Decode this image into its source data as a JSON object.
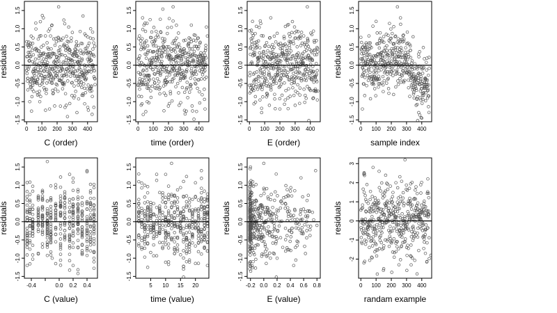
{
  "chart_data": [
    {
      "type": "scatter",
      "xlabel": "C (order)",
      "ylabel": "residuals",
      "xlim": [
        -15,
        465
      ],
      "ylim": [
        -1.55,
        1.75
      ],
      "xticks": [
        0,
        100,
        200,
        300,
        400
      ],
      "xtick_labels": [
        "0",
        "100",
        "200",
        "300",
        "400"
      ],
      "yticks": [
        -1.5,
        -1.0,
        -0.5,
        0.0,
        0.5,
        1.0,
        1.5
      ],
      "ytick_labels": [
        "-1.5",
        "-1.0",
        "-0.5",
        "0.0",
        "0.5",
        "1.0",
        "1.5"
      ],
      "hline": 0,
      "n_points": 450,
      "pattern": "order",
      "seed": 11,
      "marker_color": "#555555",
      "points": [
        [
          5,
          0.55
        ],
        [
          20,
          -1.0
        ],
        [
          40,
          0.6
        ],
        [
          80,
          -0.8
        ],
        [
          110,
          1.3
        ],
        [
          150,
          -1.2
        ],
        [
          210,
          1.6
        ],
        [
          260,
          -1.1
        ],
        [
          300,
          0.9
        ],
        [
          330,
          -1.3
        ],
        [
          370,
          1.35
        ],
        [
          420,
          1.0
        ]
      ]
    },
    {
      "type": "scatter",
      "xlabel": "time (order)",
      "ylabel": "residuals",
      "xlim": [
        -15,
        465
      ],
      "ylim": [
        -1.55,
        1.75
      ],
      "xticks": [
        0,
        100,
        200,
        300,
        400
      ],
      "xtick_labels": [
        "0",
        "100",
        "200",
        "300",
        "400"
      ],
      "yticks": [
        -1.5,
        -1.0,
        -0.5,
        0.0,
        0.5,
        1.0,
        1.5
      ],
      "ytick_labels": [
        "-1.5",
        "-1.0",
        "-0.5",
        "0.0",
        "0.5",
        "1.0",
        "1.5"
      ],
      "hline": 0,
      "n_points": 450,
      "pattern": "order",
      "seed": 23,
      "marker_color": "#555555",
      "points": [
        [
          30,
          1.3
        ],
        [
          60,
          -1.0
        ],
        [
          150,
          0.9
        ],
        [
          170,
          -1.25
        ],
        [
          230,
          1.6
        ],
        [
          270,
          -1.1
        ],
        [
          350,
          1.1
        ],
        [
          440,
          -1.2
        ],
        [
          455,
          0.8
        ]
      ]
    },
    {
      "type": "scatter",
      "xlabel": "E (order)",
      "ylabel": "residuals",
      "xlim": [
        -15,
        465
      ],
      "ylim": [
        -1.55,
        1.75
      ],
      "xticks": [
        0,
        100,
        200,
        300,
        400
      ],
      "xtick_labels": [
        "0",
        "100",
        "200",
        "300",
        "400"
      ],
      "yticks": [
        -1.5,
        -1.0,
        -0.5,
        0.0,
        0.5,
        1.0,
        1.5
      ],
      "ytick_labels": [
        "-1.5",
        "-1.0",
        "-0.5",
        "0.0",
        "0.5",
        "1.0",
        "1.5"
      ],
      "hline": 0,
      "n_points": 450,
      "pattern": "order",
      "seed": 37,
      "marker_color": "#555555",
      "points": [
        [
          20,
          1.2
        ],
        [
          80,
          -1.3
        ],
        [
          140,
          1.3
        ],
        [
          200,
          -1.2
        ],
        [
          250,
          1.1
        ],
        [
          300,
          -1.1
        ],
        [
          380,
          1.6
        ],
        [
          420,
          -0.9
        ]
      ]
    },
    {
      "type": "scatter",
      "xlabel": "sample index",
      "ylabel": "residuals",
      "xlim": [
        -15,
        465
      ],
      "ylim": [
        -1.55,
        1.75
      ],
      "xticks": [
        0,
        100,
        200,
        300,
        400
      ],
      "xtick_labels": [
        "0",
        "100",
        "200",
        "300",
        "400"
      ],
      "yticks": [
        -1.5,
        -1.0,
        -0.5,
        0.0,
        0.5,
        1.0,
        1.5
      ],
      "ytick_labels": [
        "-1.5",
        "-1.0",
        "-0.5",
        "0.0",
        "0.5",
        "1.0",
        "1.5"
      ],
      "hline": 0,
      "n_points": 450,
      "pattern": "sorted",
      "seed": 41,
      "marker_color": "#555555",
      "points": [
        [
          10,
          -1.2
        ],
        [
          100,
          1.2
        ],
        [
          240,
          1.6
        ],
        [
          260,
          1.3
        ],
        [
          350,
          -0.9
        ],
        [
          380,
          -1.3
        ],
        [
          400,
          -1.45
        ],
        [
          420,
          -0.6
        ]
      ]
    },
    {
      "type": "scatter",
      "xlabel": "C (value)",
      "ylabel": "residuals",
      "xlim": [
        -0.5,
        0.55
      ],
      "ylim": [
        -1.55,
        1.75
      ],
      "xticks": [
        -0.4,
        -0.2,
        0.0,
        0.2,
        0.4
      ],
      "xtick_labels": [
        "-0.4",
        "",
        "0.0",
        "0.2",
        "0.4"
      ],
      "yticks": [
        -1.5,
        -1.0,
        -0.5,
        0.0,
        0.5,
        1.0,
        1.5
      ],
      "ytick_labels": [
        "-1.5",
        "-1.0",
        "-0.5",
        "0.0",
        "0.5",
        "1.0",
        "1.5"
      ],
      "hline": 0,
      "n_points": 450,
      "pattern": "columns",
      "columns": [
        -0.46,
        -0.42,
        -0.38,
        -0.3,
        -0.24,
        -0.17,
        -0.12,
        -0.05,
        0.02,
        0.08,
        0.15,
        0.2,
        0.27,
        0.33,
        0.4,
        0.45,
        0.5
      ],
      "seed": 53,
      "marker_color": "#555555",
      "points": [
        [
          -0.46,
          -1.2
        ],
        [
          -0.17,
          1.65
        ],
        [
          -0.1,
          -1.0
        ],
        [
          0.15,
          1.3
        ],
        [
          0.2,
          -1.2
        ],
        [
          0.4,
          1.4
        ],
        [
          0.5,
          -1.0
        ]
      ]
    },
    {
      "type": "scatter",
      "xlabel": "time (value)",
      "ylabel": "residuals",
      "xlim": [
        0,
        24.5
      ],
      "ylim": [
        -1.55,
        1.75
      ],
      "xticks": [
        5,
        10,
        15,
        20
      ],
      "xtick_labels": [
        "5",
        "10",
        "15",
        "20"
      ],
      "yticks": [
        -1.5,
        -1.0,
        -0.5,
        0.0,
        0.5,
        1.0,
        1.5
      ],
      "ytick_labels": [
        "-1.5",
        "-1.0",
        "-0.5",
        "0.0",
        "0.5",
        "1.0",
        "1.5"
      ],
      "hline": 0,
      "n_points": 450,
      "pattern": "columns",
      "columns": [
        1,
        2,
        3,
        4,
        5,
        6,
        7,
        8,
        9,
        10,
        11,
        12,
        13,
        14,
        15,
        16,
        17,
        18,
        19,
        20,
        21,
        22,
        23,
        24
      ],
      "seed": 61,
      "marker_color": "#555555",
      "points": [
        [
          1,
          1.1
        ],
        [
          4,
          -1.25
        ],
        [
          7,
          1.3
        ],
        [
          12,
          1.6
        ],
        [
          16,
          -1.3
        ],
        [
          22,
          1.4
        ],
        [
          24,
          -1.2
        ]
      ]
    },
    {
      "type": "scatter",
      "xlabel": "E (value)",
      "ylabel": "residuals",
      "xlim": [
        -0.25,
        0.85
      ],
      "ylim": [
        -1.55,
        1.75
      ],
      "xticks": [
        -0.2,
        0.0,
        0.2,
        0.4,
        0.6,
        0.8
      ],
      "xtick_labels": [
        "-0.2",
        "0.0",
        "0.2",
        "0.4",
        "0.6",
        "0.8"
      ],
      "yticks": [
        -1.5,
        -1.0,
        -0.5,
        0.0,
        0.5,
        1.0,
        1.5
      ],
      "ytick_labels": [
        "-1.5",
        "-1.0",
        "-0.5",
        "0.0",
        "0.5",
        "1.0",
        "1.5"
      ],
      "hline": 0,
      "n_points": 450,
      "pattern": "skewed",
      "seed": 71,
      "marker_color": "#555555",
      "points": [
        [
          -0.2,
          1.5
        ],
        [
          0.0,
          1.6
        ],
        [
          0.2,
          -1.0
        ],
        [
          0.45,
          -1.2
        ],
        [
          0.55,
          0.2
        ],
        [
          0.75,
          0.05
        ],
        [
          0.78,
          1.4
        ],
        [
          0.8,
          -0.1
        ]
      ]
    },
    {
      "type": "scatter",
      "xlabel": "randam example",
      "ylabel": "residuals",
      "xlim": [
        -15,
        465
      ],
      "ylim": [
        -3.0,
        3.3
      ],
      "xticks": [
        0,
        100,
        200,
        300,
        400
      ],
      "xtick_labels": [
        "0",
        "100",
        "200",
        "300",
        "400"
      ],
      "yticks": [
        -2,
        -1,
        0,
        1,
        2,
        3
      ],
      "ytick_labels": [
        "-2",
        "-1",
        "0",
        "1",
        "2",
        "3"
      ],
      "hline": 0,
      "n_points": 450,
      "pattern": "order",
      "seed": 83,
      "marker_color": "#555555",
      "points": [
        [
          20,
          -2.2
        ],
        [
          80,
          2.8
        ],
        [
          120,
          2.6
        ],
        [
          150,
          -2.5
        ],
        [
          230,
          2.0
        ],
        [
          290,
          3.2
        ],
        [
          330,
          -2.3
        ],
        [
          440,
          2.2
        ],
        [
          460,
          -1.8
        ]
      ]
    }
  ]
}
